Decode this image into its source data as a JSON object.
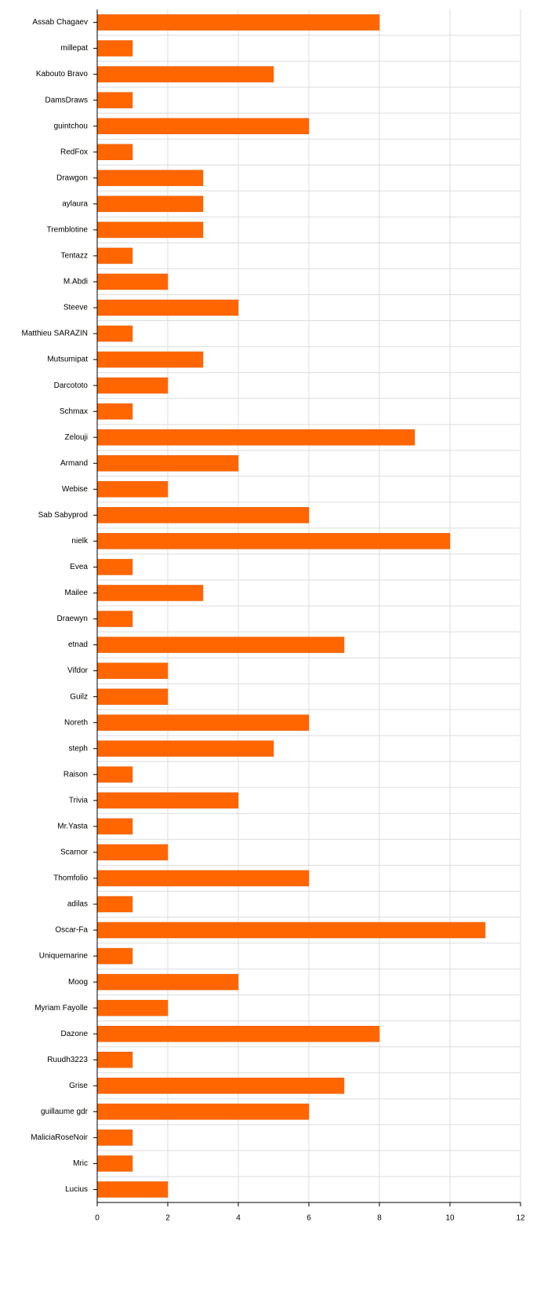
{
  "chart_data": {
    "type": "hbar",
    "categories": [
      "Assab Chagaev",
      "millepat",
      "Kabouto Bravo",
      "DamsDraws",
      "guintchou",
      "RedFox",
      "Drawgon",
      "aylaura",
      "Tremblotine",
      "Tentazz",
      "M.Abdi",
      "Steeve",
      "Matthieu SARAZIN",
      "Mutsumipat",
      "Darcototo",
      "Schmax",
      "Zelouji",
      "Armand",
      "Webise",
      "Sab Sabyprod",
      "nielk",
      "Evea",
      "Mailee",
      "Draewyn",
      "etnad",
      "Vifdor",
      "Guilz",
      "Noreth",
      "steph",
      "Raison",
      "Trivia",
      "Mr.Yasta",
      "Scarnor",
      "Thomfolio",
      "adilas",
      "Oscar-Fa",
      "Uniquemarine",
      "Moog",
      "Myriam Fayolle",
      "Dazone",
      "Ruudh3223",
      "Grise",
      "guillaume gdr",
      "MaliciaRoseNoir",
      "Mric",
      "Lucius"
    ],
    "values": [
      8,
      1,
      5,
      1,
      6,
      1,
      3,
      3,
      3,
      1,
      2,
      4,
      1,
      3,
      2,
      1,
      9,
      4,
      2,
      6,
      10,
      1,
      3,
      1,
      7,
      2,
      2,
      6,
      5,
      1,
      4,
      1,
      2,
      6,
      1,
      11,
      1,
      4,
      2,
      8,
      1,
      7,
      6,
      1,
      1,
      2
    ],
    "color": "#ff6600",
    "xlim": [
      0,
      12
    ],
    "xticks": [
      0,
      2,
      4,
      6,
      8,
      10,
      12
    ],
    "grid": true
  }
}
